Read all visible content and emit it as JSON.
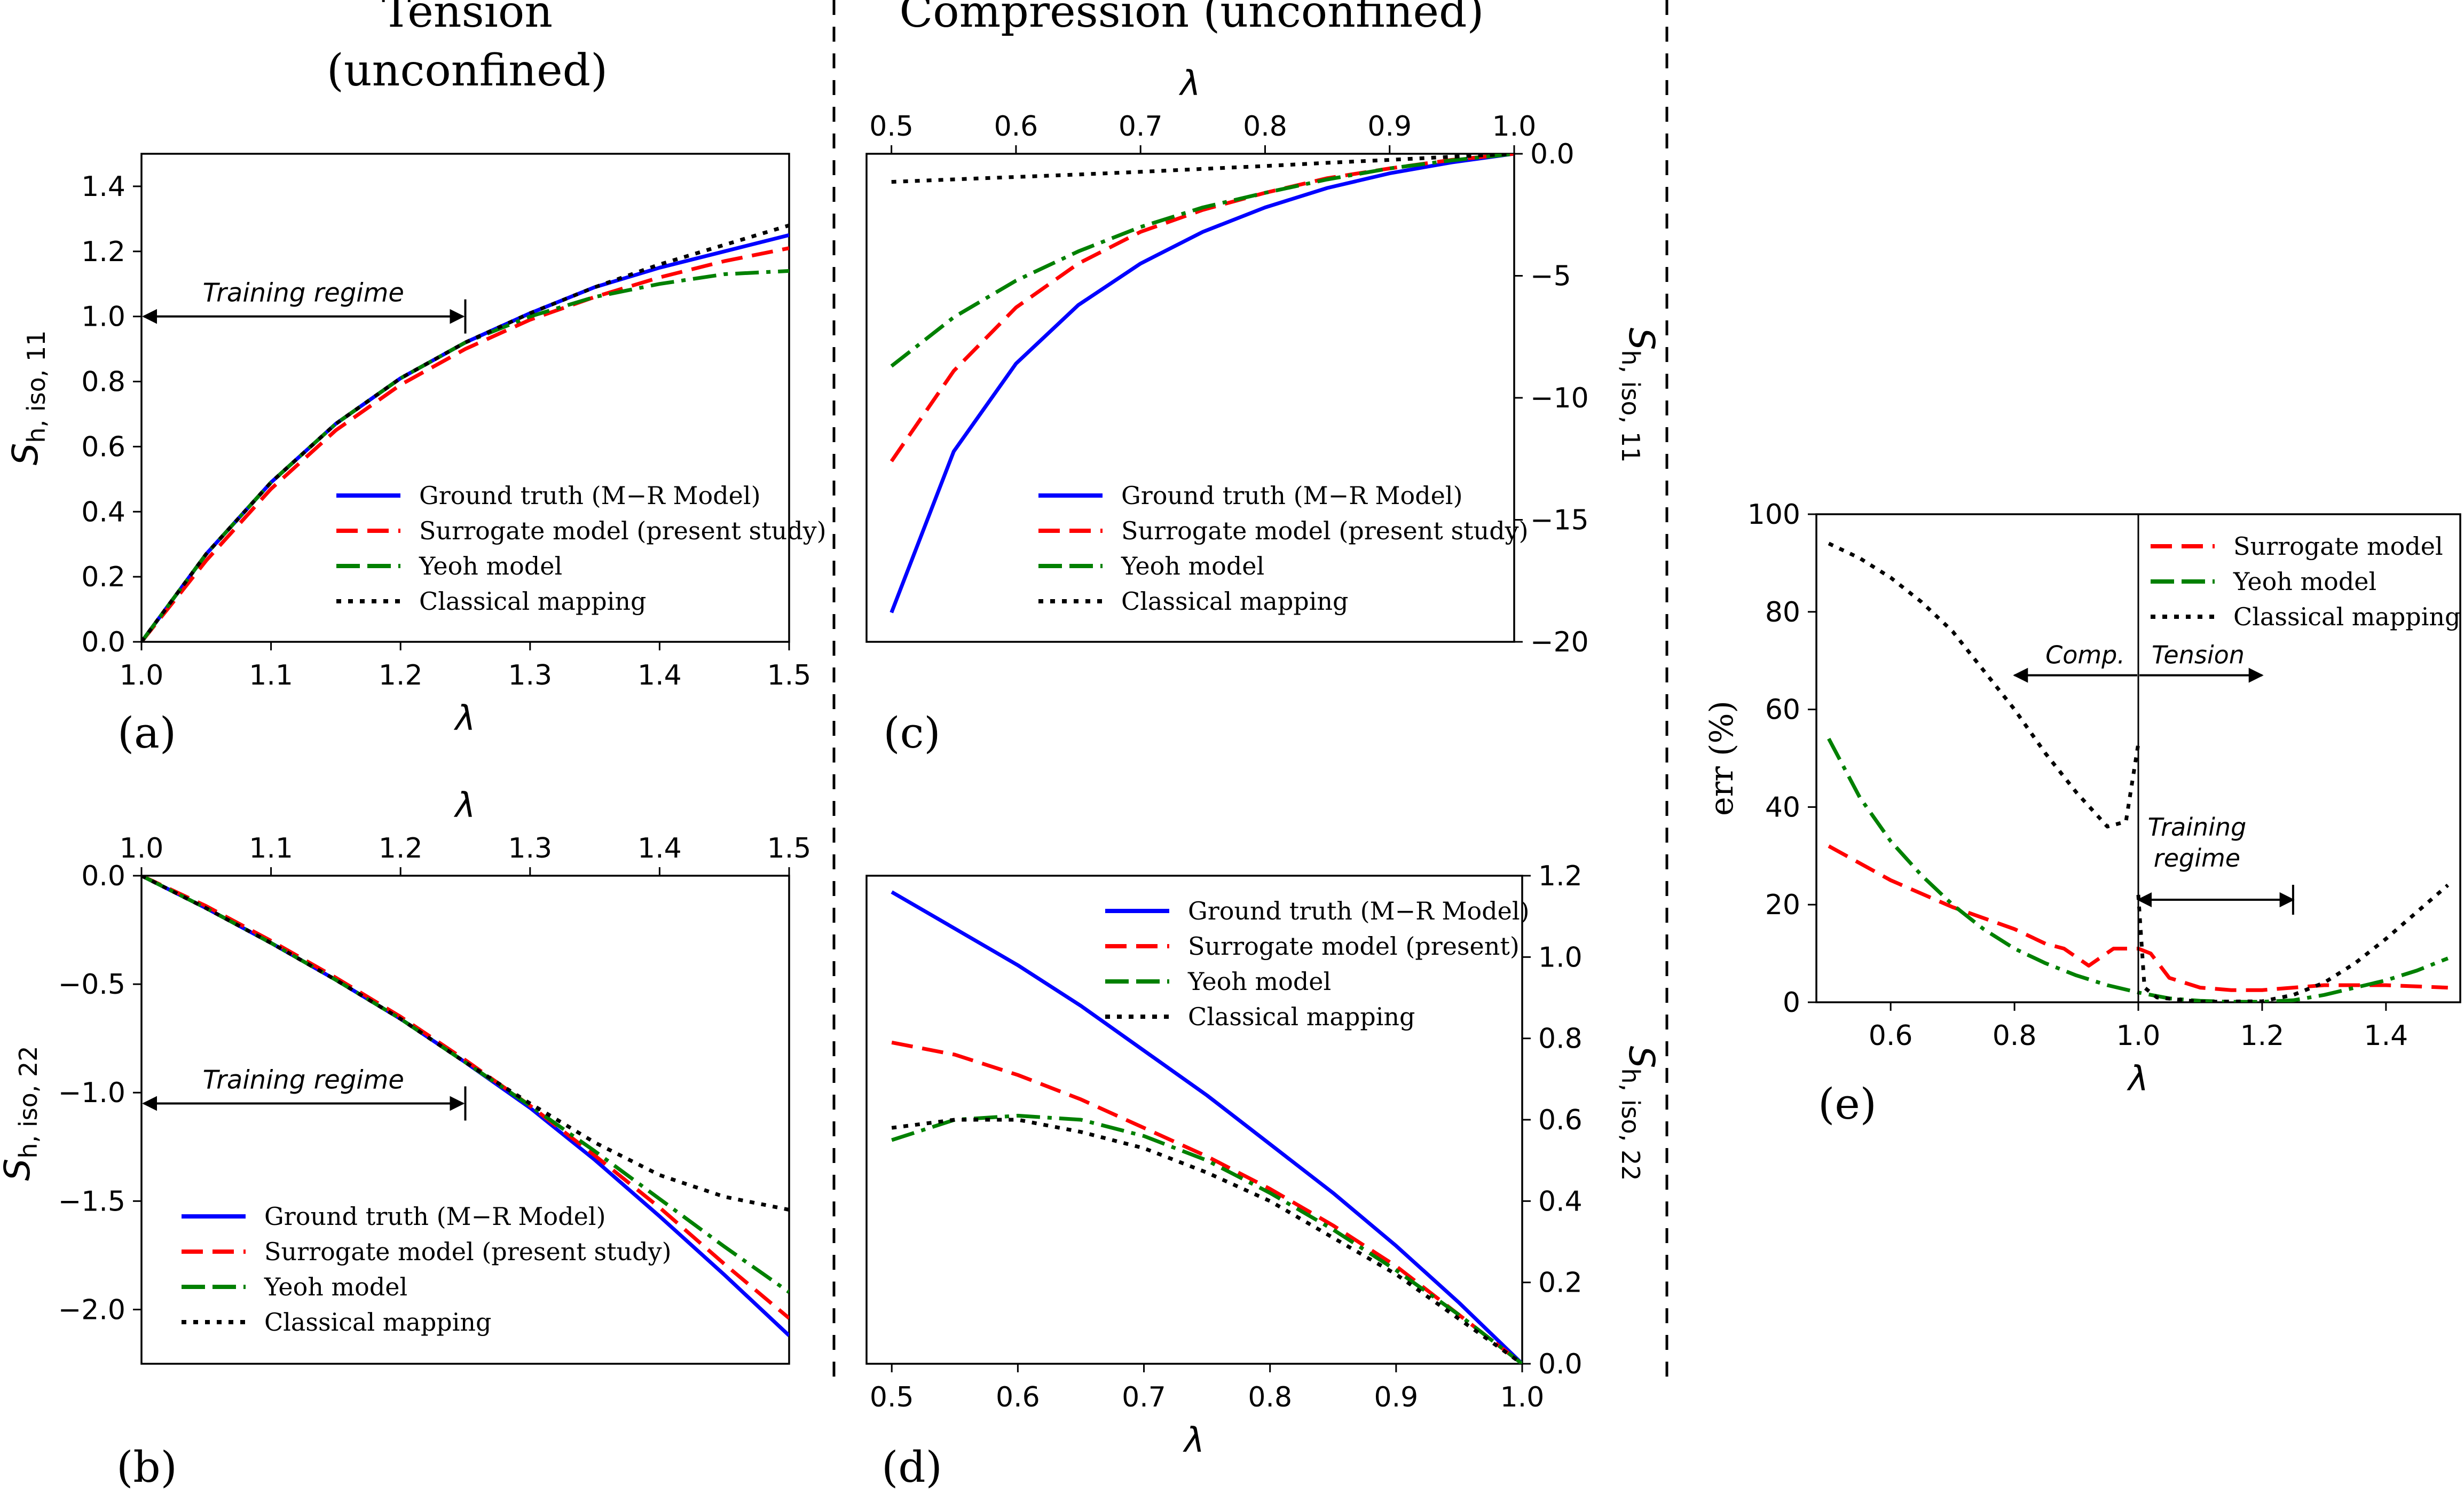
{
  "figure": {
    "tension_heading": [
      "Tension",
      "(unconfined)"
    ],
    "compression_heading": "Compression (unconfined)",
    "series_colors": {
      "truth": "#0000ff",
      "surrogate": "#ff0000",
      "yeoh": "#008000",
      "classical": "#000000"
    }
  },
  "chart_data": [
    {
      "id": "a",
      "type": "line",
      "panel_label": "(a)",
      "xlabel": "λ",
      "ylabel": "S_{h, iso, 11}",
      "xlim": [
        1.0,
        1.5
      ],
      "ylim": [
        0.0,
        1.5
      ],
      "xticks": [
        1.0,
        1.1,
        1.2,
        1.3,
        1.4,
        1.5
      ],
      "xtick_labels": [
        "1.0",
        "1.1",
        "1.2",
        "1.3",
        "1.4",
        "1.5"
      ],
      "yticks": [
        0.0,
        0.2,
        0.4,
        0.6,
        0.8,
        1.0,
        1.2,
        1.4
      ],
      "ytick_labels": [
        "0.0",
        "0.2",
        "0.4",
        "0.6",
        "0.8",
        "1.0",
        "1.2",
        "1.4"
      ],
      "annotation": {
        "text": "Training regime",
        "from": [
          1.0,
          1.0
        ],
        "to": [
          1.25,
          1.0
        ],
        "bar_x": 1.25
      },
      "legend": {
        "position": "lower-right",
        "entries": [
          "Ground truth (M−R Model)",
          "Surrogate model (present study)",
          "Yeoh model",
          "Classical mapping"
        ]
      },
      "series": [
        {
          "name": "Ground truth (M−R Model)",
          "style": "solid",
          "color": "#0000ff",
          "x": [
            1.0,
            1.05,
            1.1,
            1.15,
            1.2,
            1.25,
            1.3,
            1.35,
            1.4,
            1.45,
            1.5
          ],
          "y": [
            0.0,
            0.27,
            0.49,
            0.67,
            0.81,
            0.92,
            1.01,
            1.09,
            1.15,
            1.2,
            1.25
          ]
        },
        {
          "name": "Surrogate model (present study)",
          "style": "dashed",
          "color": "#ff0000",
          "x": [
            1.0,
            1.05,
            1.1,
            1.15,
            1.2,
            1.25,
            1.3,
            1.35,
            1.4,
            1.45,
            1.5
          ],
          "y": [
            0.0,
            0.25,
            0.47,
            0.65,
            0.79,
            0.9,
            0.99,
            1.06,
            1.12,
            1.17,
            1.21
          ]
        },
        {
          "name": "Yeoh model",
          "style": "dashdot",
          "color": "#008000",
          "x": [
            1.0,
            1.05,
            1.1,
            1.15,
            1.2,
            1.25,
            1.3,
            1.35,
            1.4,
            1.45,
            1.5
          ],
          "y": [
            0.0,
            0.27,
            0.49,
            0.67,
            0.81,
            0.92,
            1.0,
            1.06,
            1.1,
            1.13,
            1.14
          ]
        },
        {
          "name": "Classical mapping",
          "style": "dotted",
          "color": "#000000",
          "x": [
            1.0,
            1.05,
            1.1,
            1.15,
            1.2,
            1.25,
            1.3,
            1.35,
            1.4,
            1.45,
            1.5
          ],
          "y": [
            0.0,
            0.27,
            0.49,
            0.67,
            0.81,
            0.92,
            1.01,
            1.09,
            1.16,
            1.22,
            1.28
          ]
        }
      ]
    },
    {
      "id": "b",
      "type": "line",
      "panel_label": "(b)",
      "xlabel": "λ",
      "ylabel": "S_{h, iso, 22}",
      "xlim": [
        1.0,
        1.5
      ],
      "ylim": [
        -2.25,
        0.0
      ],
      "xticks": [
        1.0,
        1.1,
        1.2,
        1.3,
        1.4,
        1.5
      ],
      "xtick_labels": [
        "1.0",
        "1.1",
        "1.2",
        "1.3",
        "1.4",
        "1.5"
      ],
      "yticks": [
        0.0,
        -0.5,
        -1.0,
        -1.5,
        -2.0
      ],
      "ytick_labels": [
        "0.0",
        "−0.5",
        "−1.0",
        "−1.5",
        "−2.0"
      ],
      "annotation": {
        "text": "Training regime",
        "from": [
          1.0,
          -1.05
        ],
        "to": [
          1.25,
          -1.05
        ],
        "bar_x": 1.25
      },
      "legend": {
        "position": "lower-left",
        "entries": [
          "Ground truth (M−R Model)",
          "Surrogate model (present study)",
          "Yeoh model",
          "Classical mapping"
        ]
      },
      "series": [
        {
          "name": "Ground truth (M−R Model)",
          "style": "solid",
          "color": "#0000ff",
          "x": [
            1.0,
            1.05,
            1.1,
            1.15,
            1.2,
            1.25,
            1.3,
            1.35,
            1.4,
            1.45,
            1.5
          ],
          "y": [
            0.0,
            -0.15,
            -0.31,
            -0.48,
            -0.66,
            -0.86,
            -1.07,
            -1.31,
            -1.57,
            -1.84,
            -2.12
          ]
        },
        {
          "name": "Surrogate model (present study)",
          "style": "dashed",
          "color": "#ff0000",
          "x": [
            1.0,
            1.05,
            1.1,
            1.15,
            1.2,
            1.25,
            1.3,
            1.35,
            1.4,
            1.45,
            1.5
          ],
          "y": [
            0.0,
            -0.14,
            -0.3,
            -0.47,
            -0.65,
            -0.85,
            -1.06,
            -1.29,
            -1.53,
            -1.79,
            -2.04
          ]
        },
        {
          "name": "Yeoh model",
          "style": "dashdot",
          "color": "#008000",
          "x": [
            1.0,
            1.05,
            1.1,
            1.15,
            1.2,
            1.25,
            1.3,
            1.35,
            1.4,
            1.45,
            1.5
          ],
          "y": [
            0.0,
            -0.15,
            -0.31,
            -0.48,
            -0.66,
            -0.86,
            -1.06,
            -1.27,
            -1.49,
            -1.71,
            -1.92
          ]
        },
        {
          "name": "Classical mapping",
          "style": "dotted",
          "color": "#000000",
          "x": [
            1.0,
            1.05,
            1.1,
            1.15,
            1.2,
            1.25,
            1.3,
            1.35,
            1.4,
            1.45,
            1.5
          ],
          "y": [
            0.0,
            -0.15,
            -0.31,
            -0.48,
            -0.66,
            -0.86,
            -1.05,
            -1.23,
            -1.38,
            -1.48,
            -1.54
          ]
        }
      ]
    },
    {
      "id": "c",
      "type": "line",
      "panel_label": "(c)",
      "xlabel": "λ",
      "ylabel": "S_{h, iso, 11}",
      "xlim": [
        0.48,
        1.0
      ],
      "ylim": [
        -20.0,
        0.0
      ],
      "xticks": [
        0.5,
        0.6,
        0.7,
        0.8,
        0.9,
        1.0
      ],
      "xtick_labels": [
        "0.5",
        "0.6",
        "0.7",
        "0.8",
        "0.9",
        "1.0"
      ],
      "yticks": [
        0.0,
        -5.0,
        -10.0,
        -15.0,
        -20.0
      ],
      "ytick_labels": [
        "0.0",
        "−5",
        "−10",
        "−15",
        "−20"
      ],
      "legend": {
        "position": "lower-right",
        "entries": [
          "Ground truth (M−R Model)",
          "Surrogate model (present study)",
          "Yeoh model",
          "Classical mapping"
        ]
      },
      "series": [
        {
          "name": "Ground truth (M−R Model)",
          "style": "solid",
          "color": "#0000ff",
          "x": [
            0.5,
            0.55,
            0.6,
            0.65,
            0.7,
            0.75,
            0.8,
            0.85,
            0.9,
            0.95,
            1.0
          ],
          "y": [
            -18.8,
            -12.2,
            -8.6,
            -6.2,
            -4.5,
            -3.2,
            -2.2,
            -1.4,
            -0.8,
            -0.35,
            0.0
          ]
        },
        {
          "name": "Surrogate model (present study)",
          "style": "dashed",
          "color": "#ff0000",
          "x": [
            0.5,
            0.55,
            0.6,
            0.65,
            0.7,
            0.75,
            0.8,
            0.85,
            0.9,
            0.95,
            1.0
          ],
          "y": [
            -12.6,
            -8.9,
            -6.3,
            -4.5,
            -3.2,
            -2.3,
            -1.6,
            -1.0,
            -0.6,
            -0.25,
            0.0
          ]
        },
        {
          "name": "Yeoh model",
          "style": "dashdot",
          "color": "#008000",
          "x": [
            0.5,
            0.55,
            0.6,
            0.65,
            0.7,
            0.75,
            0.8,
            0.85,
            0.9,
            0.95,
            1.0
          ],
          "y": [
            -8.7,
            -6.7,
            -5.2,
            -4.0,
            -3.0,
            -2.2,
            -1.6,
            -1.05,
            -0.6,
            -0.27,
            0.0
          ]
        },
        {
          "name": "Classical mapping",
          "style": "dotted",
          "color": "#000000",
          "x": [
            0.5,
            0.55,
            0.6,
            0.65,
            0.7,
            0.75,
            0.8,
            0.85,
            0.9,
            0.95,
            1.0
          ],
          "y": [
            -1.15,
            -1.05,
            -0.95,
            -0.85,
            -0.74,
            -0.62,
            -0.5,
            -0.37,
            -0.25,
            -0.12,
            0.0
          ]
        }
      ]
    },
    {
      "id": "d",
      "type": "line",
      "panel_label": "(d)",
      "xlabel": "λ",
      "ylabel": "S_{h, iso, 22}",
      "xlim": [
        0.48,
        1.0
      ],
      "ylim": [
        0.0,
        1.2
      ],
      "xticks": [
        0.5,
        0.6,
        0.7,
        0.8,
        0.9,
        1.0
      ],
      "xtick_labels": [
        "0.5",
        "0.6",
        "0.7",
        "0.8",
        "0.9",
        "1.0"
      ],
      "yticks": [
        0.0,
        0.2,
        0.4,
        0.6,
        0.8,
        1.0,
        1.2
      ],
      "ytick_labels": [
        "0.0",
        "0.2",
        "0.4",
        "0.6",
        "0.8",
        "1.0",
        "1.2"
      ],
      "legend": {
        "position": "top-right",
        "entries": [
          "Ground truth (M−R Model)",
          "Surrogate model (present)",
          "Yeoh model",
          "Classical mapping"
        ]
      },
      "series": [
        {
          "name": "Ground truth (M−R Model)",
          "style": "solid",
          "color": "#0000ff",
          "x": [
            0.5,
            0.55,
            0.6,
            0.65,
            0.7,
            0.75,
            0.8,
            0.85,
            0.9,
            0.95,
            1.0
          ],
          "y": [
            1.16,
            1.07,
            0.98,
            0.88,
            0.77,
            0.66,
            0.54,
            0.42,
            0.29,
            0.15,
            0.0
          ]
        },
        {
          "name": "Surrogate model (present)",
          "style": "dashed",
          "color": "#ff0000",
          "x": [
            0.5,
            0.55,
            0.6,
            0.65,
            0.7,
            0.75,
            0.8,
            0.85,
            0.9,
            0.95,
            1.0
          ],
          "y": [
            0.79,
            0.76,
            0.71,
            0.65,
            0.58,
            0.51,
            0.43,
            0.34,
            0.24,
            0.12,
            0.0
          ]
        },
        {
          "name": "Yeoh model",
          "style": "dashdot",
          "color": "#008000",
          "x": [
            0.5,
            0.55,
            0.6,
            0.65,
            0.7,
            0.75,
            0.8,
            0.85,
            0.9,
            0.95,
            1.0
          ],
          "y": [
            0.55,
            0.6,
            0.61,
            0.6,
            0.56,
            0.5,
            0.42,
            0.33,
            0.23,
            0.12,
            0.0
          ]
        },
        {
          "name": "Classical mapping",
          "style": "dotted",
          "color": "#000000",
          "x": [
            0.5,
            0.55,
            0.6,
            0.65,
            0.7,
            0.75,
            0.8,
            0.85,
            0.9,
            0.95,
            1.0
          ],
          "y": [
            0.58,
            0.6,
            0.6,
            0.57,
            0.53,
            0.47,
            0.4,
            0.31,
            0.22,
            0.11,
            0.0
          ]
        }
      ]
    },
    {
      "id": "e",
      "type": "line",
      "panel_label": "(e)",
      "xlabel": "λ",
      "ylabel": "err (%)",
      "xlim": [
        0.48,
        1.52
      ],
      "ylim": [
        0.0,
        100.0
      ],
      "xticks": [
        0.6,
        0.8,
        1.0,
        1.2,
        1.4
      ],
      "xtick_labels": [
        "0.6",
        "0.8",
        "1.0",
        "1.2",
        "1.4"
      ],
      "yticks": [
        0,
        20,
        40,
        60,
        80,
        100
      ],
      "ytick_labels": [
        "0",
        "20",
        "40",
        "60",
        "80",
        "100"
      ],
      "vline_x": 1.0,
      "annotations": [
        {
          "text": "Comp.",
          "arrow_from": 1.0,
          "arrow_to": 0.8,
          "y": 67
        },
        {
          "text": "Tension",
          "arrow_from": 1.0,
          "arrow_to": 1.2,
          "y": 67
        },
        {
          "text": [
            "Training",
            "regime"
          ],
          "arrow_from": 1.0,
          "arrow_to": 1.25,
          "y": 21
        }
      ],
      "legend": {
        "position": "top-right",
        "entries": [
          "Surrogate model",
          "Yeoh model",
          "Classical mapping"
        ]
      },
      "series": [
        {
          "name": "Surrogate model",
          "style": "dashed",
          "color": "#ff0000",
          "x": [
            0.5,
            0.6,
            0.7,
            0.8,
            0.85,
            0.88,
            0.92,
            0.96,
            1.0,
            1.02,
            1.05,
            1.1,
            1.15,
            1.2,
            1.25,
            1.3,
            1.4,
            1.5
          ],
          "y": [
            32,
            25,
            19.5,
            15,
            12,
            11,
            7.5,
            11,
            11,
            10,
            5,
            3,
            2.5,
            2.5,
            3,
            3.5,
            3.5,
            3
          ]
        },
        {
          "name": "Yeoh model",
          "style": "dashdot",
          "color": "#008000",
          "x": [
            0.5,
            0.55,
            0.6,
            0.65,
            0.7,
            0.75,
            0.8,
            0.85,
            0.9,
            0.95,
            1.0,
            1.05,
            1.1,
            1.15,
            1.2,
            1.25,
            1.3,
            1.35,
            1.4,
            1.45,
            1.5
          ],
          "y": [
            54,
            42,
            33,
            26,
            20,
            15,
            11,
            8,
            5.5,
            3.5,
            2,
            0.8,
            0.3,
            0.1,
            0.1,
            0.4,
            1.5,
            3,
            4.5,
            6.5,
            9
          ]
        },
        {
          "name": "Classical mapping",
          "style": "dotted",
          "color": "#000000",
          "x": [
            0.5,
            0.55,
            0.6,
            0.65,
            0.7,
            0.75,
            0.8,
            0.85,
            0.9,
            0.95,
            0.98,
            1.0
          ],
          "y": [
            94,
            91,
            87,
            82,
            76,
            68,
            60,
            51,
            43,
            36,
            37,
            53
          ]
        },
        {
          "name": "Classical mapping",
          "style": "dotted",
          "color": "#000000",
          "x": [
            1.0,
            1.01,
            1.03,
            1.1,
            1.2,
            1.25,
            1.3,
            1.35,
            1.4,
            1.45,
            1.5
          ],
          "y": [
            22,
            3,
            1,
            0.1,
            0.2,
            1.5,
            4,
            8,
            13,
            18.5,
            24
          ]
        }
      ]
    }
  ]
}
